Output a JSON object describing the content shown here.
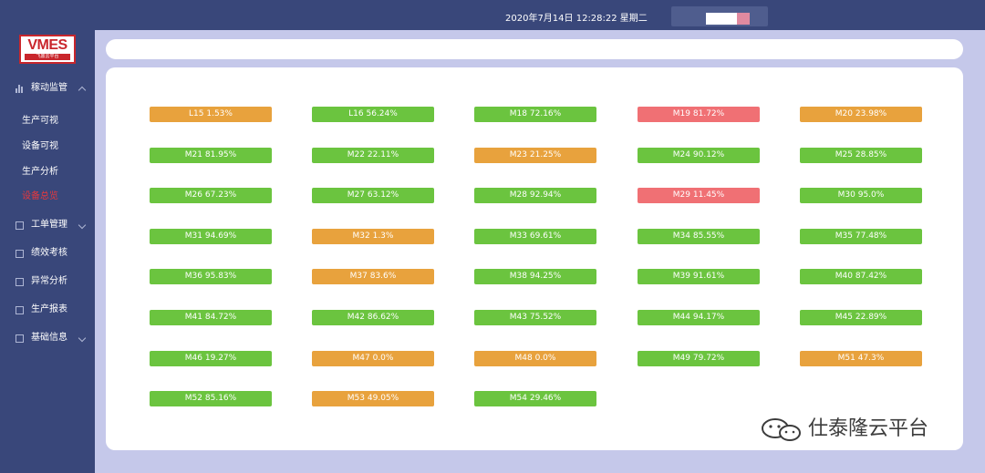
{
  "header": {
    "datetime": "2020年7月14日 12:28:22 星期二"
  },
  "logo": {
    "text": "VMES",
    "subtext": "飞鼎云平台"
  },
  "sidebar": {
    "items": [
      {
        "label": "稼动监管",
        "icon": "bar-chart-icon",
        "expanded": true,
        "children": [
          {
            "label": "生产可视",
            "active": false
          },
          {
            "label": "设备可视",
            "active": false
          },
          {
            "label": "生产分析",
            "active": false
          },
          {
            "label": "设备总览",
            "active": true
          }
        ]
      },
      {
        "label": "工单管理",
        "icon": "grid-icon"
      },
      {
        "label": "绩效考核",
        "icon": "calendar-icon"
      },
      {
        "label": "异常分析",
        "icon": "monitor-icon"
      },
      {
        "label": "生产报表",
        "icon": "document-icon"
      },
      {
        "label": "基础信息",
        "icon": "table-icon"
      }
    ]
  },
  "status_colors": {
    "green": "#6bc43f",
    "orange": "#e8a23d",
    "red": "#f07074"
  },
  "machines": [
    {
      "label": "L15 1.53%",
      "status": "orange"
    },
    {
      "label": "L16 56.24%",
      "status": "green"
    },
    {
      "label": "M18 72.16%",
      "status": "green"
    },
    {
      "label": "M19 81.72%",
      "status": "red"
    },
    {
      "label": "M20 23.98%",
      "status": "orange"
    },
    {
      "label": "M21 81.95%",
      "status": "green"
    },
    {
      "label": "M22 22.11%",
      "status": "green"
    },
    {
      "label": "M23 21.25%",
      "status": "orange"
    },
    {
      "label": "M24 90.12%",
      "status": "green"
    },
    {
      "label": "M25 28.85%",
      "status": "green"
    },
    {
      "label": "M26 67.23%",
      "status": "green"
    },
    {
      "label": "M27 63.12%",
      "status": "green"
    },
    {
      "label": "M28 92.94%",
      "status": "green"
    },
    {
      "label": "M29 11.45%",
      "status": "red"
    },
    {
      "label": "M30 95.0%",
      "status": "green"
    },
    {
      "label": "M31 94.69%",
      "status": "green"
    },
    {
      "label": "M32 1.3%",
      "status": "orange"
    },
    {
      "label": "M33 69.61%",
      "status": "green"
    },
    {
      "label": "M34 85.55%",
      "status": "green"
    },
    {
      "label": "M35 77.48%",
      "status": "green"
    },
    {
      "label": "M36 95.83%",
      "status": "green"
    },
    {
      "label": "M37 83.6%",
      "status": "orange"
    },
    {
      "label": "M38 94.25%",
      "status": "green"
    },
    {
      "label": "M39 91.61%",
      "status": "green"
    },
    {
      "label": "M40 87.42%",
      "status": "green"
    },
    {
      "label": "M41 84.72%",
      "status": "green"
    },
    {
      "label": "M42 86.62%",
      "status": "green"
    },
    {
      "label": "M43 75.52%",
      "status": "green"
    },
    {
      "label": "M44 94.17%",
      "status": "green"
    },
    {
      "label": "M45 22.89%",
      "status": "green"
    },
    {
      "label": "M46 19.27%",
      "status": "green"
    },
    {
      "label": "M47 0.0%",
      "status": "orange"
    },
    {
      "label": "M48 0.0%",
      "status": "orange"
    },
    {
      "label": "M49 79.72%",
      "status": "green"
    },
    {
      "label": "M51 47.3%",
      "status": "orange"
    },
    {
      "label": "M52 85.16%",
      "status": "green"
    },
    {
      "label": "M53 49.05%",
      "status": "orange"
    },
    {
      "label": "M54 29.46%",
      "status": "green"
    }
  ],
  "watermark": {
    "text": "仕泰隆云平台",
    "icon": "wechat-icon"
  }
}
